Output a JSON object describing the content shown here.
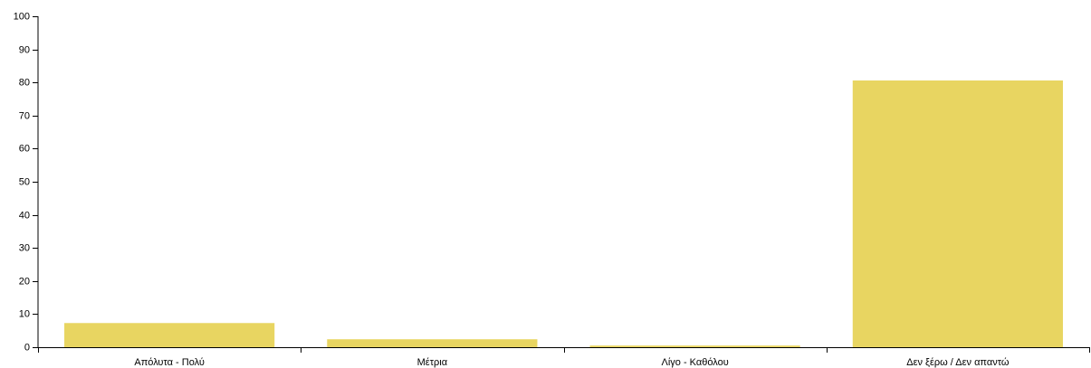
{
  "chart_data": {
    "type": "bar",
    "categories": [
      "Απόλυτα - Πολύ",
      "Μέτρια",
      "Λίγο - Καθόλου",
      "Δεν ξέρω / Δεν απαντώ"
    ],
    "values": [
      7.3,
      2.4,
      0.5,
      80.6
    ],
    "ylim": [
      0,
      100
    ],
    "yticks": [
      0,
      10,
      20,
      30,
      40,
      50,
      60,
      70,
      80,
      90,
      100
    ],
    "title": "",
    "xlabel": "",
    "ylabel": "",
    "grid": false,
    "colors": {
      "bar": "#e8d561",
      "axis": "#000000"
    }
  }
}
